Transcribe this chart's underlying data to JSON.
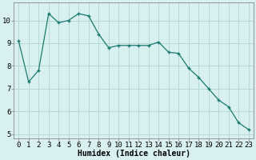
{
  "x": [
    0,
    1,
    2,
    3,
    4,
    5,
    6,
    7,
    8,
    9,
    10,
    11,
    12,
    13,
    14,
    15,
    16,
    17,
    18,
    19,
    20,
    21,
    22,
    23
  ],
  "y": [
    9.1,
    7.3,
    7.8,
    10.3,
    9.9,
    10.0,
    10.3,
    10.2,
    9.4,
    8.8,
    8.9,
    8.9,
    8.9,
    8.9,
    9.05,
    8.6,
    8.55,
    7.9,
    7.5,
    7.0,
    6.5,
    6.2,
    5.5,
    5.2
  ],
  "line_color": "#1a7a6e",
  "marker": "+",
  "bg_color": "#d8f0f0",
  "grid_color": "#b8d8d8",
  "xlabel": "Humidex (Indice chaleur)",
  "xlabel_fontsize": 7,
  "tick_fontsize": 6.5,
  "ylim": [
    4.8,
    10.8
  ],
  "xlim": [
    -0.5,
    23.5
  ],
  "yticks": [
    5,
    6,
    7,
    8,
    9,
    10
  ],
  "xtick_labels": [
    "0",
    "1",
    "2",
    "3",
    "4",
    "5",
    "6",
    "7",
    "8",
    "9",
    "10",
    "11",
    "12",
    "13",
    "14",
    "15",
    "16",
    "17",
    "18",
    "19",
    "20",
    "21",
    "22",
    "23"
  ]
}
